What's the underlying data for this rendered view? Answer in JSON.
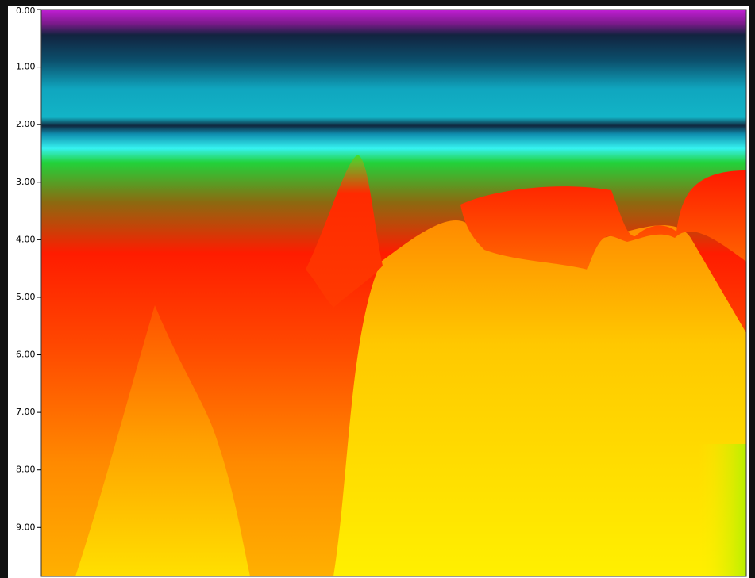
{
  "chart_data": {
    "type": "heatmap",
    "ylim": [
      0,
      9.85
    ],
    "yticks": [
      {
        "value": 0,
        "label": "0.00"
      },
      {
        "value": 1,
        "label": "1.00"
      },
      {
        "value": 2,
        "label": "2.00"
      },
      {
        "value": 3,
        "label": "3.00"
      },
      {
        "value": 4,
        "label": "4.00"
      },
      {
        "value": 5,
        "label": "5.00"
      },
      {
        "value": 6,
        "label": "6.00"
      },
      {
        "value": 7,
        "label": "7.00"
      },
      {
        "value": 8,
        "label": "8.00"
      },
      {
        "value": 9,
        "label": "9.00"
      }
    ]
  }
}
